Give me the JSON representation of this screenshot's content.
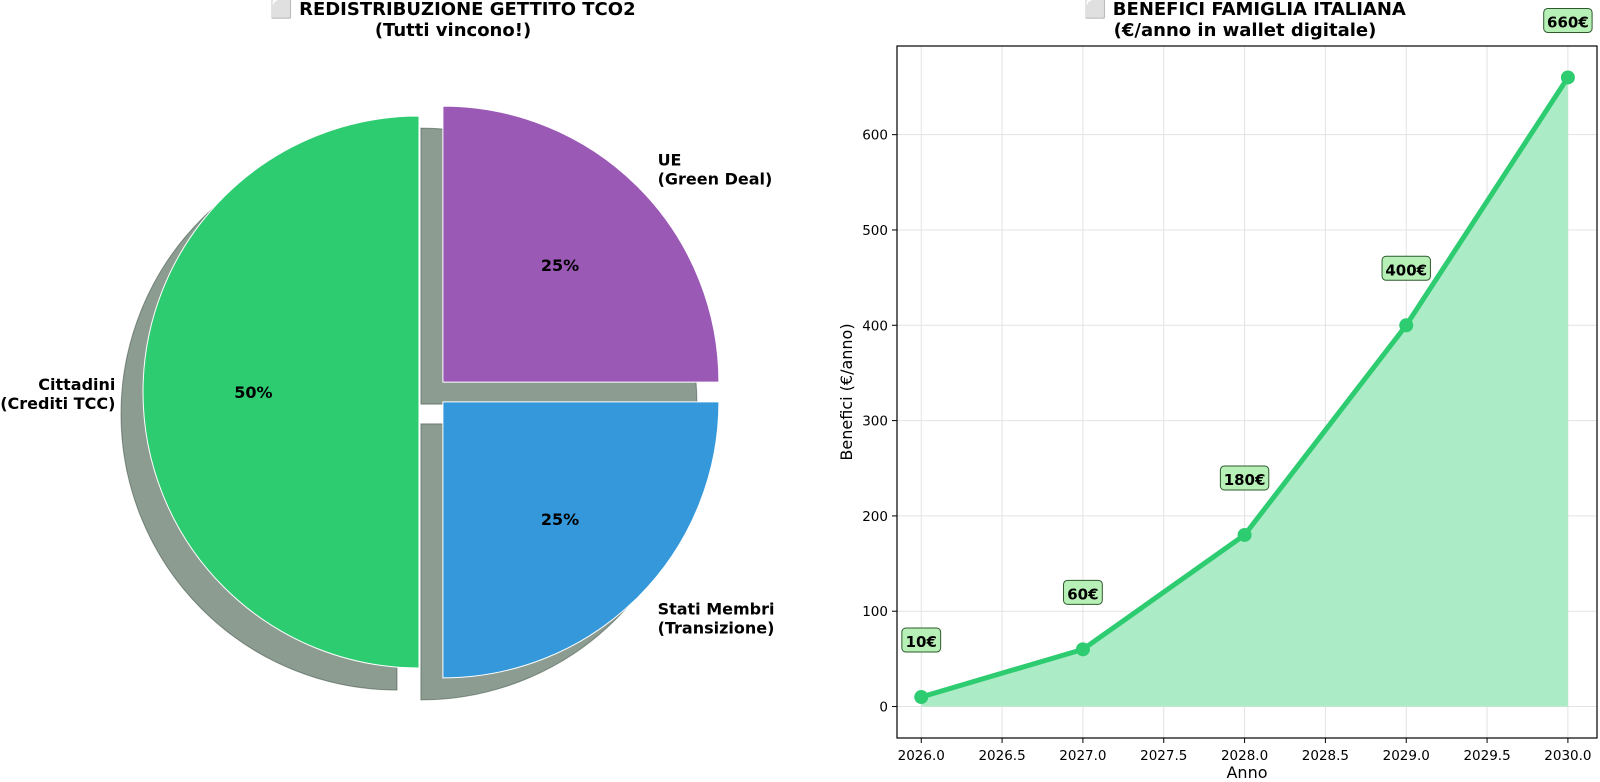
{
  "chart_data": [
    {
      "type": "pie",
      "title": "⬜ REDISTRIBUZIONE GETTITO TCO2",
      "subtitle": "(Tutti vincono!)",
      "slices": [
        {
          "label": "UE",
          "label_line2": "(Green Deal)",
          "value": 25,
          "display": "25%",
          "color": "#9b59b6"
        },
        {
          "label": "Stati Membri",
          "label_line2": "(Transizione)",
          "value": 25,
          "display": "25%",
          "color": "#3498db"
        },
        {
          "label": "Cittadini",
          "label_line2": "(Crediti TCC)",
          "value": 50,
          "display": "50%",
          "color": "#2ecc71"
        }
      ],
      "shadow": true,
      "exploded": true
    },
    {
      "type": "area",
      "title": "⬜ BENEFICI FAMIGLIA ITALIANA",
      "subtitle": "(€/anno in wallet digitale)",
      "xlabel": "Anno",
      "ylabel": "Benefici (€/anno)",
      "x": [
        2026,
        2027,
        2028,
        2029,
        2030
      ],
      "y": [
        10,
        60,
        180,
        400,
        660
      ],
      "point_labels": [
        "10€",
        "60€",
        "180€",
        "400€",
        "660€"
      ],
      "xlim": [
        2025.85,
        2030.18
      ],
      "ylim": [
        -33,
        693
      ],
      "xticks": [
        2026.0,
        2026.5,
        2027.0,
        2027.5,
        2028.0,
        2028.5,
        2029.0,
        2029.5,
        2030.0
      ],
      "xtick_labels": [
        "2026.0",
        "2026.5",
        "2027.0",
        "2027.5",
        "2028.0",
        "2028.5",
        "2029.0",
        "2029.5",
        "2030.0"
      ],
      "yticks": [
        0,
        100,
        200,
        300,
        400,
        500,
        600
      ],
      "ytick_labels": [
        "0",
        "100",
        "200",
        "300",
        "400",
        "500",
        "600"
      ],
      "grid": true,
      "line_color": "#2ecc71",
      "fill_color": "#abebc6",
      "label_box_color": "#b6f0b6"
    }
  ]
}
